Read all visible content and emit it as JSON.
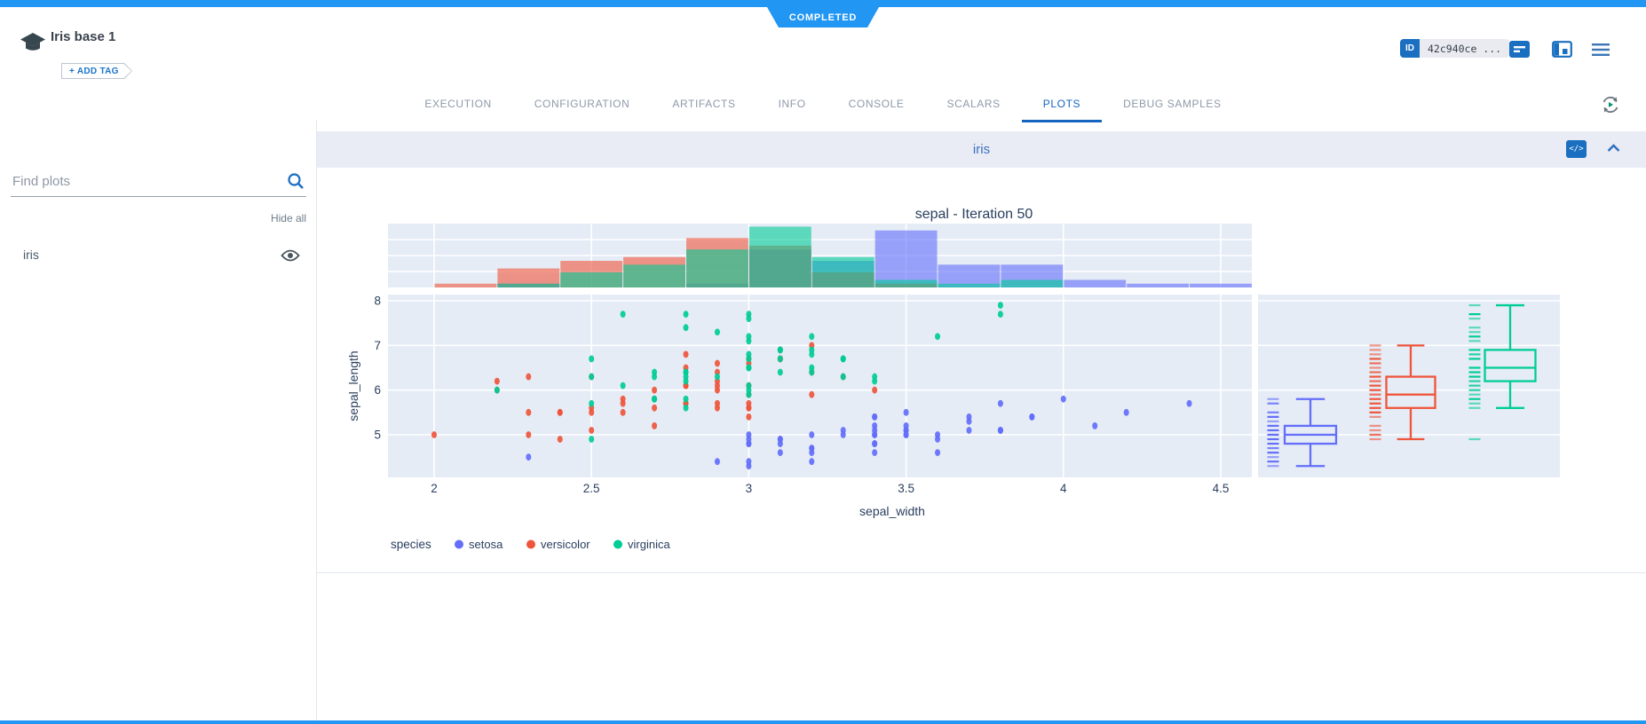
{
  "status_banner": {
    "label": "COMPLETED"
  },
  "header": {
    "title": "Iris base 1",
    "add_tag_label": "+ ADD TAG",
    "id_label": "ID",
    "id_value": "42c940ce ..."
  },
  "tabs": {
    "items": [
      {
        "label": "EXECUTION",
        "active": false
      },
      {
        "label": "CONFIGURATION",
        "active": false
      },
      {
        "label": "ARTIFACTS",
        "active": false
      },
      {
        "label": "INFO",
        "active": false
      },
      {
        "label": "CONSOLE",
        "active": false
      },
      {
        "label": "SCALARS",
        "active": false
      },
      {
        "label": "PLOTS",
        "active": true
      },
      {
        "label": "DEBUG SAMPLES",
        "active": false
      }
    ]
  },
  "sidebar": {
    "search_placeholder": "Find plots",
    "hide_all_label": "Hide all",
    "items": [
      {
        "label": "iris",
        "visible": true
      }
    ]
  },
  "plot_panel": {
    "title": "iris"
  },
  "icons": {
    "code_chip": "</>"
  },
  "colors": {
    "accent_blue": "#2196f3",
    "active_tab": "#1565c0",
    "plot_bg": "#e5ecf6",
    "plot_text": "#2a3f5f",
    "setosa": "#636efa",
    "versicolor": "#EF553B",
    "virginica": "#00cc96"
  },
  "chart_data": {
    "type": "scatter",
    "title": "sepal - Iteration 50",
    "xlabel": "sepal_width",
    "ylabel": "sepal_length",
    "xlim": [
      1.85,
      4.6
    ],
    "ylim": [
      4.03,
      8.15
    ],
    "xticks": [
      2,
      2.5,
      3,
      3.5,
      4,
      4.5
    ],
    "yticks": [
      5,
      6,
      7,
      8
    ],
    "grid": true,
    "legend_title": "species",
    "legend_position": "bottom-left",
    "series": [
      {
        "name": "setosa",
        "color": "#636efa",
        "points": [
          [
            3.5,
            5.1
          ],
          [
            3.0,
            4.9
          ],
          [
            3.2,
            4.7
          ],
          [
            3.1,
            4.6
          ],
          [
            3.6,
            5.0
          ],
          [
            3.9,
            5.4
          ],
          [
            3.4,
            4.6
          ],
          [
            3.4,
            5.0
          ],
          [
            2.9,
            4.4
          ],
          [
            3.1,
            4.9
          ],
          [
            3.7,
            5.4
          ],
          [
            3.4,
            4.8
          ],
          [
            3.0,
            4.8
          ],
          [
            3.0,
            4.3
          ],
          [
            4.0,
            5.8
          ],
          [
            4.4,
            5.7
          ],
          [
            3.9,
            5.4
          ],
          [
            3.5,
            5.1
          ],
          [
            3.8,
            5.7
          ],
          [
            3.8,
            5.1
          ],
          [
            3.4,
            5.4
          ],
          [
            3.7,
            5.1
          ],
          [
            3.6,
            4.6
          ],
          [
            3.3,
            5.1
          ],
          [
            3.4,
            4.8
          ],
          [
            3.0,
            5.0
          ],
          [
            3.4,
            5.0
          ],
          [
            3.5,
            5.2
          ],
          [
            3.4,
            5.2
          ],
          [
            3.2,
            4.7
          ],
          [
            3.1,
            4.8
          ],
          [
            3.4,
            5.4
          ],
          [
            4.1,
            5.2
          ],
          [
            4.2,
            5.5
          ],
          [
            3.1,
            4.9
          ],
          [
            3.2,
            5.0
          ],
          [
            3.5,
            5.5
          ],
          [
            3.6,
            4.9
          ],
          [
            3.0,
            4.4
          ],
          [
            3.4,
            5.1
          ],
          [
            3.5,
            5.0
          ],
          [
            2.3,
            4.5
          ],
          [
            3.2,
            4.4
          ],
          [
            3.5,
            5.0
          ],
          [
            3.8,
            5.1
          ],
          [
            3.0,
            4.8
          ],
          [
            3.8,
            5.1
          ],
          [
            3.2,
            4.6
          ],
          [
            3.7,
            5.3
          ],
          [
            3.3,
            5.0
          ]
        ]
      },
      {
        "name": "versicolor",
        "color": "#EF553B",
        "points": [
          [
            3.2,
            7.0
          ],
          [
            3.2,
            6.4
          ],
          [
            3.1,
            6.9
          ],
          [
            2.3,
            5.5
          ],
          [
            2.8,
            6.5
          ],
          [
            2.8,
            5.7
          ],
          [
            3.3,
            6.3
          ],
          [
            2.4,
            4.9
          ],
          [
            2.9,
            6.6
          ],
          [
            2.7,
            5.2
          ],
          [
            2.0,
            5.0
          ],
          [
            3.0,
            5.9
          ],
          [
            2.2,
            6.0
          ],
          [
            2.9,
            6.1
          ],
          [
            2.9,
            5.6
          ],
          [
            3.1,
            6.7
          ],
          [
            3.0,
            5.6
          ],
          [
            2.7,
            5.8
          ],
          [
            2.2,
            6.2
          ],
          [
            2.5,
            5.6
          ],
          [
            3.2,
            5.9
          ],
          [
            2.8,
            6.1
          ],
          [
            2.5,
            6.3
          ],
          [
            2.8,
            6.1
          ],
          [
            2.9,
            6.4
          ],
          [
            3.0,
            6.6
          ],
          [
            2.8,
            6.8
          ],
          [
            3.0,
            6.7
          ],
          [
            2.9,
            6.0
          ],
          [
            2.6,
            5.7
          ],
          [
            2.4,
            5.5
          ],
          [
            2.4,
            5.5
          ],
          [
            2.7,
            5.8
          ],
          [
            2.7,
            6.0
          ],
          [
            3.0,
            5.4
          ],
          [
            3.4,
            6.0
          ],
          [
            3.1,
            6.7
          ],
          [
            2.3,
            6.3
          ],
          [
            3.0,
            5.6
          ],
          [
            2.5,
            5.5
          ],
          [
            2.6,
            5.5
          ],
          [
            3.0,
            6.1
          ],
          [
            2.6,
            5.8
          ],
          [
            2.3,
            5.0
          ],
          [
            2.7,
            5.6
          ],
          [
            3.0,
            5.7
          ],
          [
            2.9,
            5.7
          ],
          [
            2.9,
            6.2
          ],
          [
            2.5,
            5.1
          ],
          [
            2.8,
            5.7
          ]
        ]
      },
      {
        "name": "virginica",
        "color": "#00cc96",
        "points": [
          [
            3.3,
            6.3
          ],
          [
            2.7,
            5.8
          ],
          [
            3.0,
            7.1
          ],
          [
            2.9,
            6.3
          ],
          [
            3.0,
            6.5
          ],
          [
            3.0,
            7.6
          ],
          [
            2.5,
            4.9
          ],
          [
            2.9,
            7.3
          ],
          [
            2.5,
            6.7
          ],
          [
            3.6,
            7.2
          ],
          [
            3.2,
            6.5
          ],
          [
            2.7,
            6.4
          ],
          [
            3.0,
            6.8
          ],
          [
            2.5,
            5.7
          ],
          [
            2.8,
            5.8
          ],
          [
            3.2,
            6.4
          ],
          [
            3.0,
            6.5
          ],
          [
            3.8,
            7.7
          ],
          [
            2.6,
            7.7
          ],
          [
            2.2,
            6.0
          ],
          [
            3.2,
            6.9
          ],
          [
            2.8,
            5.6
          ],
          [
            2.8,
            7.7
          ],
          [
            2.7,
            6.3
          ],
          [
            3.3,
            6.7
          ],
          [
            3.2,
            7.2
          ],
          [
            2.8,
            6.2
          ],
          [
            3.0,
            6.1
          ],
          [
            2.8,
            6.4
          ],
          [
            3.0,
            7.2
          ],
          [
            2.8,
            7.4
          ],
          [
            3.8,
            7.9
          ],
          [
            2.8,
            6.4
          ],
          [
            2.8,
            6.3
          ],
          [
            2.6,
            6.1
          ],
          [
            3.0,
            7.7
          ],
          [
            3.4,
            6.3
          ],
          [
            3.1,
            6.4
          ],
          [
            3.0,
            6.0
          ],
          [
            3.1,
            6.9
          ],
          [
            3.1,
            6.7
          ],
          [
            3.1,
            6.9
          ],
          [
            2.7,
            5.8
          ],
          [
            3.2,
            6.8
          ],
          [
            3.3,
            6.7
          ],
          [
            3.0,
            6.7
          ],
          [
            2.5,
            6.3
          ],
          [
            3.0,
            6.5
          ],
          [
            3.4,
            6.2
          ],
          [
            3.0,
            5.9
          ]
        ]
      }
    ],
    "marginal_histogram": {
      "axis": "x",
      "bin_start": 2.0,
      "bin_width": 0.2,
      "counts": {
        "setosa": [
          0,
          1,
          0,
          0,
          1,
          10,
          7,
          15,
          6,
          6,
          2,
          1,
          1
        ],
        "versicolor": [
          1,
          5,
          7,
          8,
          13,
          11,
          4,
          1,
          0,
          0,
          0,
          0,
          0
        ],
        "virginica": [
          0,
          1,
          4,
          6,
          10,
          16,
          8,
          2,
          1,
          2,
          0,
          0,
          0
        ]
      }
    },
    "marginal_box": {
      "axis": "y",
      "stats": [
        {
          "name": "setosa",
          "min": 4.3,
          "q1": 4.8,
          "median": 5.0,
          "q3": 5.2,
          "max": 5.8,
          "outliers": []
        },
        {
          "name": "versicolor",
          "min": 4.9,
          "q1": 5.6,
          "median": 5.9,
          "q3": 6.3,
          "max": 7.0,
          "outliers": []
        },
        {
          "name": "virginica",
          "min": 5.6,
          "q1": 6.2,
          "median": 6.5,
          "q3": 6.9,
          "max": 7.9,
          "outliers": [
            4.9
          ]
        }
      ]
    }
  }
}
